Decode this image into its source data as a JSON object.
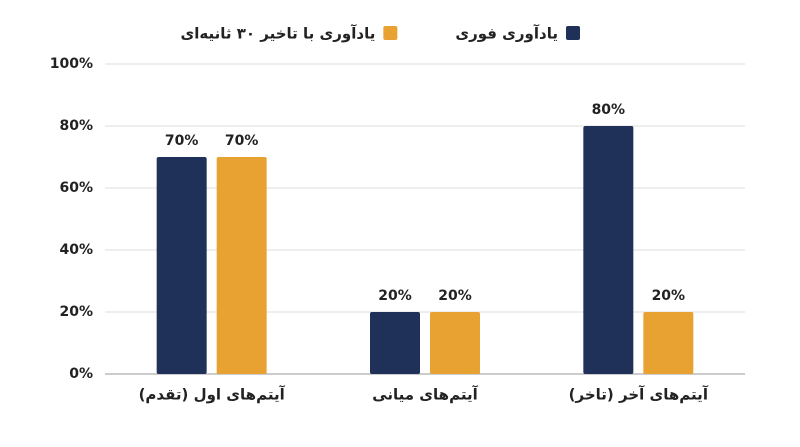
{
  "chart_data": {
    "type": "bar",
    "categories": [
      "آیتم‌های اول (تقدم)",
      "آیتم‌های میانی",
      "آیتم‌های آخر (تاخر)"
    ],
    "series": [
      {
        "name": "یادآوری فوری",
        "color": "#1f3159",
        "values": [
          70,
          20,
          80
        ],
        "value_labels": [
          "70%",
          "20%",
          "80%"
        ]
      },
      {
        "name": "یادآوری با تاخیر ۳۰ ثانیه‌ای",
        "color": "#e8a232",
        "values": [
          70,
          20,
          20
        ],
        "value_labels": [
          "70%",
          "20%",
          "20%"
        ]
      }
    ],
    "ylim": [
      0,
      100
    ],
    "yticks": [
      {
        "value": 0,
        "label": "0%"
      },
      {
        "value": 20,
        "label": "20%"
      },
      {
        "value": 40,
        "label": "40%"
      },
      {
        "value": 60,
        "label": "60%"
      },
      {
        "value": 80,
        "label": "80%"
      },
      {
        "value": 100,
        "label": "100%"
      }
    ],
    "grid": true
  }
}
